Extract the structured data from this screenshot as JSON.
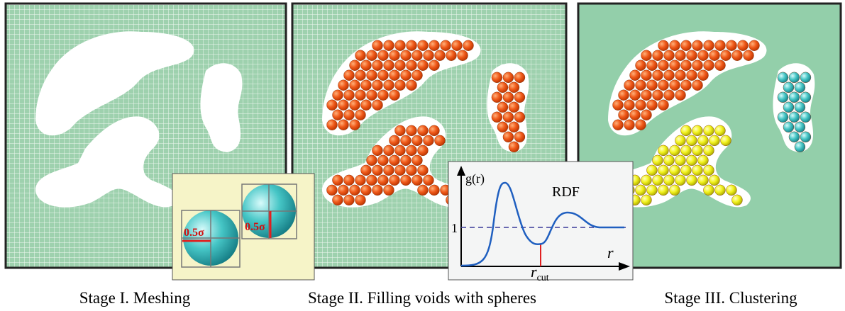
{
  "panels": [
    {
      "caption": "Stage I. Meshing"
    },
    {
      "caption": "Stage II. Filling voids with spheres"
    },
    {
      "caption": "Stage III. Clustering"
    }
  ],
  "inset_sphere": {
    "labels": [
      "0.5σ",
      "0.5σ"
    ]
  },
  "inset_rdf": {
    "y_label": "g(r)",
    "title": "RDF",
    "one_label": "1",
    "x_label": "r",
    "cut_label": "r",
    "cut_subscript": "cut"
  }
}
